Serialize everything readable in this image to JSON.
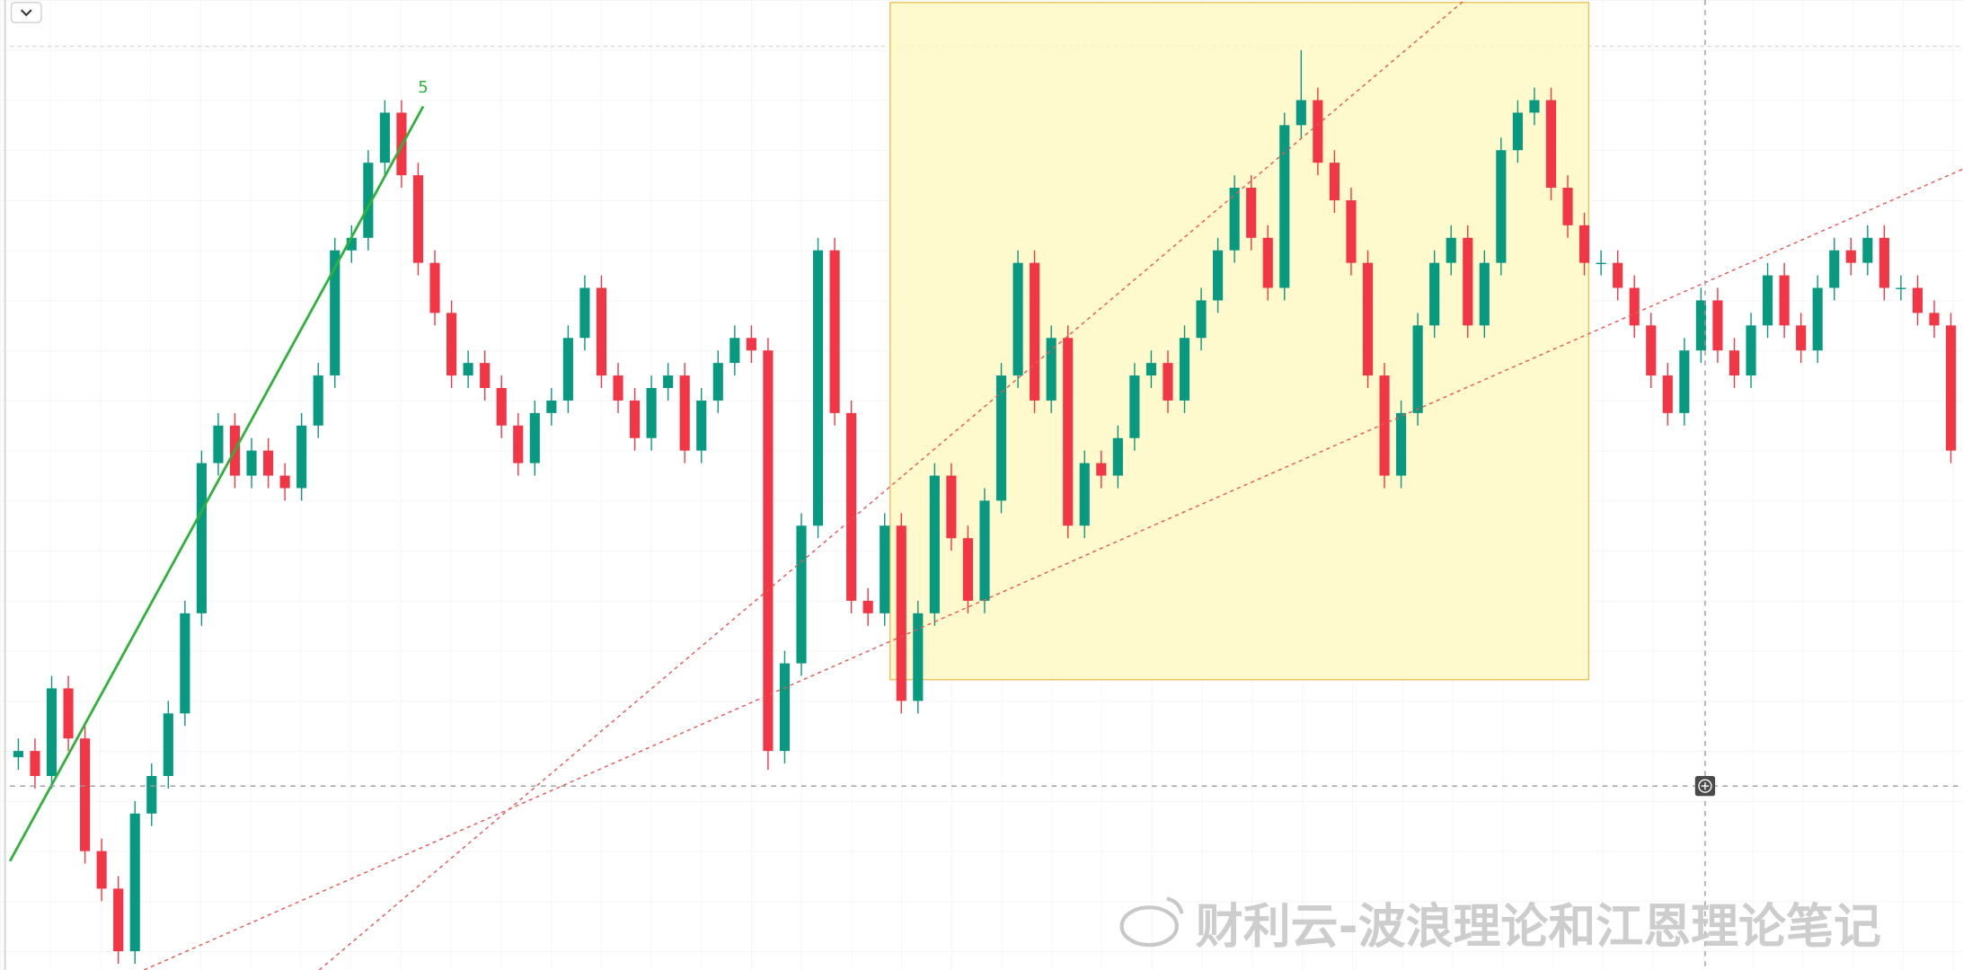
{
  "chart_data": {
    "type": "candlestick",
    "wave_label": "5",
    "watermark": "财利云-波浪理论和江恩理论笔记",
    "ylim": [
      0,
      775
    ],
    "up_color": "#089981",
    "down_color": "#f23645",
    "open": [
      170,
      175,
      155,
      225,
      185,
      95,
      65,
      15,
      125,
      155,
      205,
      285,
      405,
      435,
      395,
      415,
      395,
      385,
      435,
      475,
      575,
      585,
      645,
      685,
      635,
      565,
      525,
      475,
      485,
      465,
      435,
      405,
      445,
      455,
      505,
      545,
      475,
      455,
      425,
      465,
      475,
      415,
      455,
      485,
      505,
      495,
      175,
      245,
      355,
      575,
      445,
      295,
      285,
      355,
      215,
      285,
      395,
      345,
      295,
      375,
      475,
      565,
      455,
      505,
      355,
      405,
      395,
      425,
      475,
      485,
      455,
      505,
      535,
      575,
      625,
      585,
      545,
      675,
      695,
      645,
      615,
      565,
      475,
      395,
      445,
      515,
      565,
      585,
      515,
      565,
      655,
      685,
      695,
      625,
      595,
      565,
      565,
      545,
      515,
      475,
      445,
      495,
      535,
      495,
      475,
      515,
      555,
      515,
      495,
      545,
      575,
      565,
      585,
      545,
      545,
      525,
      515
    ],
    "high": [
      185,
      185,
      235,
      235,
      195,
      105,
      75,
      135,
      165,
      215,
      295,
      415,
      445,
      445,
      425,
      425,
      405,
      445,
      485,
      585,
      595,
      655,
      695,
      695,
      645,
      575,
      535,
      495,
      495,
      475,
      445,
      455,
      465,
      515,
      555,
      555,
      485,
      465,
      475,
      485,
      485,
      465,
      495,
      515,
      515,
      505,
      255,
      365,
      585,
      585,
      455,
      305,
      365,
      365,
      295,
      405,
      405,
      355,
      385,
      485,
      575,
      575,
      515,
      515,
      415,
      415,
      435,
      485,
      495,
      495,
      515,
      545,
      585,
      635,
      635,
      595,
      685,
      735,
      705,
      655,
      625,
      575,
      485,
      455,
      525,
      575,
      595,
      595,
      575,
      665,
      695,
      705,
      705,
      635,
      605,
      575,
      575,
      555,
      525,
      485,
      505,
      545,
      545,
      505,
      525,
      565,
      565,
      525,
      555,
      585,
      585,
      595,
      595,
      555,
      555,
      535,
      525
    ],
    "low": [
      160,
      145,
      145,
      175,
      85,
      55,
      5,
      5,
      115,
      145,
      195,
      275,
      395,
      385,
      385,
      385,
      375,
      375,
      425,
      465,
      565,
      575,
      635,
      625,
      555,
      515,
      465,
      465,
      455,
      425,
      395,
      395,
      435,
      445,
      495,
      465,
      445,
      415,
      415,
      455,
      405,
      405,
      445,
      475,
      485,
      160,
      165,
      235,
      345,
      435,
      285,
      275,
      275,
      205,
      205,
      275,
      335,
      285,
      285,
      365,
      465,
      445,
      445,
      345,
      345,
      385,
      385,
      415,
      465,
      445,
      445,
      495,
      525,
      565,
      575,
      535,
      535,
      665,
      635,
      605,
      555,
      465,
      385,
      385,
      435,
      505,
      555,
      505,
      505,
      555,
      645,
      675,
      615,
      585,
      555,
      555,
      535,
      505,
      465,
      435,
      435,
      485,
      485,
      465,
      465,
      505,
      505,
      485,
      485,
      535,
      555,
      555,
      535,
      535,
      515,
      505,
      405
    ],
    "close": [
      175,
      155,
      225,
      185,
      95,
      65,
      15,
      125,
      155,
      205,
      285,
      405,
      435,
      395,
      415,
      395,
      385,
      435,
      475,
      575,
      585,
      645,
      685,
      635,
      565,
      525,
      475,
      485,
      465,
      435,
      405,
      445,
      455,
      505,
      545,
      475,
      455,
      425,
      465,
      475,
      415,
      455,
      485,
      505,
      495,
      175,
      245,
      355,
      575,
      445,
      295,
      285,
      355,
      215,
      285,
      395,
      345,
      295,
      375,
      475,
      565,
      455,
      505,
      355,
      405,
      395,
      425,
      475,
      485,
      455,
      505,
      535,
      575,
      625,
      585,
      545,
      675,
      695,
      645,
      615,
      565,
      475,
      395,
      445,
      515,
      565,
      585,
      515,
      565,
      655,
      685,
      695,
      625,
      595,
      565,
      565,
      545,
      515,
      475,
      445,
      495,
      535,
      495,
      475,
      515,
      555,
      515,
      495,
      545,
      575,
      565,
      585,
      545,
      545,
      525,
      515,
      415
    ]
  }
}
